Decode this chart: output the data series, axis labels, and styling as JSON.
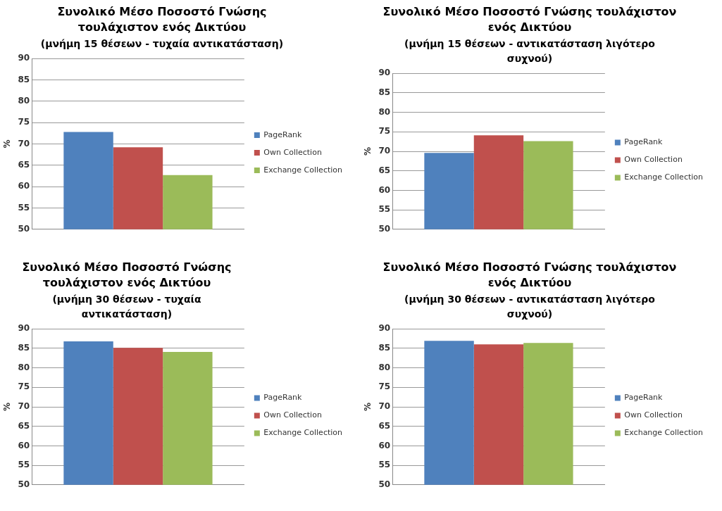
{
  "chart_data": [
    {
      "type": "bar",
      "title": "Συνολικό Μέσο Ποσοστό Γνώσης τουλάχιστον ενός Δικτύου",
      "subtitle": "(μνήμη 15 θέσεων - τυχαία αντικατάσταση)",
      "ylabel": "%",
      "categories": [
        null
      ],
      "series": [
        {
          "name": "PageRank",
          "color": "#4f81bd",
          "values": [
            72.8
          ]
        },
        {
          "name": "Own Collection",
          "color": "#c0504d",
          "values": [
            69.2
          ]
        },
        {
          "name": "Exchange Collection",
          "color": "#9bbb59",
          "values": [
            62.7
          ]
        }
      ],
      "ylim": [
        50,
        90
      ],
      "yticks": [
        50,
        55,
        60,
        65,
        70,
        75,
        80,
        85,
        90
      ],
      "grid": "y",
      "legend": "right"
    },
    {
      "type": "bar",
      "title": "Συνολικό Μέσο Ποσοστό Γνώσης τουλάχιστον ενός Δικτύου",
      "subtitle": "(μνήμη 15 θέσεων - αντικατάσταση λιγότερο συχνού)",
      "ylabel": "%",
      "categories": [
        null
      ],
      "series": [
        {
          "name": "PageRank",
          "color": "#4f81bd",
          "values": [
            69.6
          ]
        },
        {
          "name": "Own Collection",
          "color": "#c0504d",
          "values": [
            74.1
          ]
        },
        {
          "name": "Exchange Collection",
          "color": "#9bbb59",
          "values": [
            72.6
          ]
        }
      ],
      "ylim": [
        50,
        90
      ],
      "yticks": [
        50,
        55,
        60,
        65,
        70,
        75,
        80,
        85,
        90
      ],
      "grid": "y",
      "legend": "right"
    },
    {
      "type": "bar",
      "title": "Συνολικό Μέσο Ποσοστό Γνώσης τουλάχιστον ενός Δικτύου",
      "subtitle": "(μνήμη 30 θέσεων - τυχαία αντικατάσταση)",
      "ylabel": "%",
      "categories": [
        null
      ],
      "series": [
        {
          "name": "PageRank",
          "color": "#4f81bd",
          "values": [
            86.8
          ]
        },
        {
          "name": "Own Collection",
          "color": "#c0504d",
          "values": [
            85.1
          ]
        },
        {
          "name": "Exchange Collection",
          "color": "#9bbb59",
          "values": [
            84.1
          ]
        }
      ],
      "ylim": [
        50,
        90
      ],
      "yticks": [
        50,
        55,
        60,
        65,
        70,
        75,
        80,
        85,
        90
      ],
      "grid": "y",
      "legend": "right"
    },
    {
      "type": "bar",
      "title": "Συνολικό Μέσο Ποσοστό Γνώσης τουλάχιστον ενός Δικτύου",
      "subtitle": "(μνήμη 30 θέσεων - αντικατάσταση λιγότερο συχνού)",
      "ylabel": "%",
      "categories": [
        null
      ],
      "series": [
        {
          "name": "PageRank",
          "color": "#4f81bd",
          "values": [
            86.9
          ]
        },
        {
          "name": "Own Collection",
          "color": "#c0504d",
          "values": [
            86.0
          ]
        },
        {
          "name": "Exchange Collection",
          "color": "#9bbb59",
          "values": [
            86.4
          ]
        }
      ],
      "ylim": [
        50,
        90
      ],
      "yticks": [
        50,
        55,
        60,
        65,
        70,
        75,
        80,
        85,
        90
      ],
      "grid": "y",
      "legend": "right"
    }
  ]
}
